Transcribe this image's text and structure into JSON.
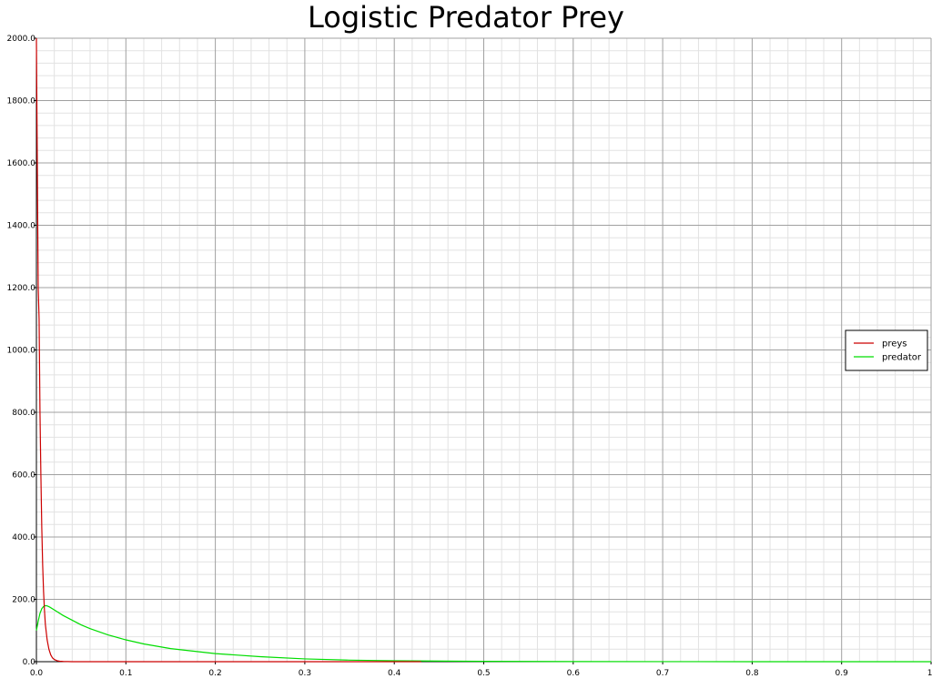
{
  "chart_data": {
    "type": "line",
    "title": "Logistic Predator Prey",
    "xlabel": "",
    "ylabel": "",
    "xlim": [
      0,
      1
    ],
    "ylim": [
      0,
      2000
    ],
    "x_ticks": [
      "0.0",
      "0.1",
      "0.2",
      "0.3",
      "0.4",
      "0.5",
      "0.6",
      "0.7",
      "0.8",
      "0.9",
      "1."
    ],
    "y_ticks": [
      "0.0",
      "200.0",
      "400.0",
      "600.0",
      "800.0",
      "1000.0",
      "1200.0",
      "1400.0",
      "1600.0",
      "1800.0",
      "2000.0"
    ],
    "grid": true,
    "legend_position": "right",
    "series": [
      {
        "name": "preys",
        "color": "#cc0000",
        "x": [
          0.0,
          0.001,
          0.002,
          0.003,
          0.004,
          0.005,
          0.006,
          0.007,
          0.008,
          0.009,
          0.01,
          0.012,
          0.014,
          0.016,
          0.018,
          0.02,
          0.023,
          0.026,
          0.03,
          0.035,
          0.04,
          0.05,
          0.1,
          0.2,
          0.3,
          0.36,
          0.43
        ],
        "y": [
          2000,
          1600,
          1200,
          1100,
          800,
          600,
          430,
          310,
          225,
          165,
          120,
          70,
          40,
          22,
          12,
          7,
          3,
          1.5,
          0.7,
          0.3,
          0.1,
          0,
          0,
          0,
          0,
          0,
          0
        ]
      },
      {
        "name": "predator",
        "color": "#00dd00",
        "x": [
          0.0,
          0.002,
          0.004,
          0.006,
          0.008,
          0.01,
          0.012,
          0.015,
          0.02,
          0.03,
          0.04,
          0.05,
          0.06,
          0.08,
          0.1,
          0.12,
          0.15,
          0.2,
          0.25,
          0.3,
          0.35,
          0.4,
          0.5,
          0.6,
          0.7,
          0.8,
          0.9,
          1.0
        ],
        "y": [
          100,
          130,
          155,
          170,
          177,
          180,
          179,
          175,
          166,
          148,
          133,
          118,
          106,
          86,
          70,
          57,
          42,
          26,
          16,
          9,
          5,
          3,
          1,
          0.4,
          0.2,
          0.1,
          0,
          0
        ]
      }
    ]
  }
}
